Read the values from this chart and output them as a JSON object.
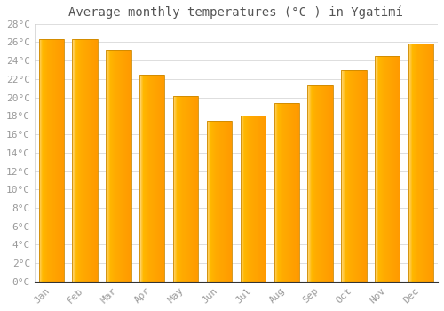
{
  "title": "Average monthly temperatures (°C ) in Ygatimí",
  "months": [
    "Jan",
    "Feb",
    "Mar",
    "Apr",
    "May",
    "Jun",
    "Jul",
    "Aug",
    "Sep",
    "Oct",
    "Nov",
    "Dec"
  ],
  "values": [
    26.3,
    26.3,
    25.2,
    22.5,
    20.2,
    17.5,
    18.0,
    19.4,
    21.3,
    23.0,
    24.5,
    25.9
  ],
  "bar_color_left": "#FFFFFF",
  "bar_color_mid": "#FFB700",
  "bar_color_right": "#FFA500",
  "bar_edge_color": "#CC8800",
  "background_color": "#FFFFFF",
  "grid_color": "#DDDDDD",
  "tick_label_color": "#999999",
  "title_color": "#555555",
  "ylim": [
    0,
    28
  ],
  "yticks": [
    0,
    2,
    4,
    6,
    8,
    10,
    12,
    14,
    16,
    18,
    20,
    22,
    24,
    26,
    28
  ],
  "title_fontsize": 10,
  "tick_fontsize": 8,
  "font_family": "monospace",
  "bar_width": 0.75
}
